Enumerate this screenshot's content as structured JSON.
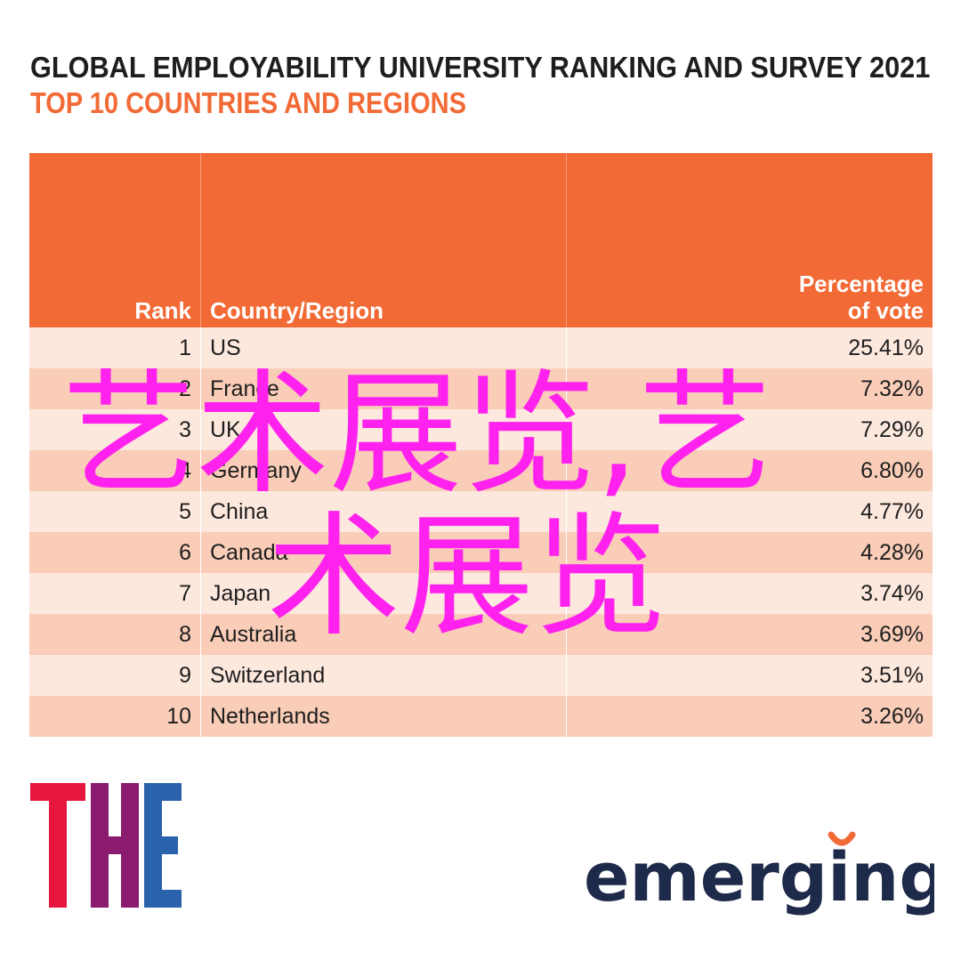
{
  "header": {
    "title": "GLOBAL EMPLOYABILITY UNIVERSITY RANKING AND SURVEY 2021",
    "subtitle": "TOP 10 COUNTRIES AND REGIONS"
  },
  "chart_data": {
    "type": "table",
    "title": "GLOBAL EMPLOYABILITY UNIVERSITY RANKING AND SURVEY 2021",
    "subtitle": "TOP 10 COUNTRIES AND REGIONS",
    "columns": [
      "Rank",
      "Country/Region",
      "Percentage\nof vote"
    ],
    "rows": [
      [
        "1",
        "US",
        "25.41%"
      ],
      [
        "2",
        "France",
        "7.32%"
      ],
      [
        "3",
        "UK",
        "7.29%"
      ],
      [
        "4",
        "Germany",
        "6.80%"
      ],
      [
        "5",
        "China",
        "4.77%"
      ],
      [
        "6",
        "Canada",
        "4.28%"
      ],
      [
        "7",
        "Japan",
        "3.74%"
      ],
      [
        "8",
        "Australia",
        "3.69%"
      ],
      [
        "9",
        "Switzerland",
        "3.51%"
      ],
      [
        "10",
        "Netherlands",
        "3.26%"
      ]
    ]
  },
  "table_header": {
    "rank": "Rank",
    "country": "Country/Region",
    "pct_line1": "Percentage",
    "pct_line2": "of vote"
  },
  "watermark": {
    "line1": "艺术展览,艺",
    "line2": "术展览",
    "color": "#ff22ee"
  },
  "logos": {
    "the": "THE",
    "emerging": "emerging"
  },
  "colors": {
    "accent": "#f26a35",
    "row_light": "#fde8de",
    "row_dark": "#f9cdb8",
    "logo_red": "#e5173f",
    "logo_blue": "#2b62ad",
    "logo_navy": "#1e2a4a"
  }
}
